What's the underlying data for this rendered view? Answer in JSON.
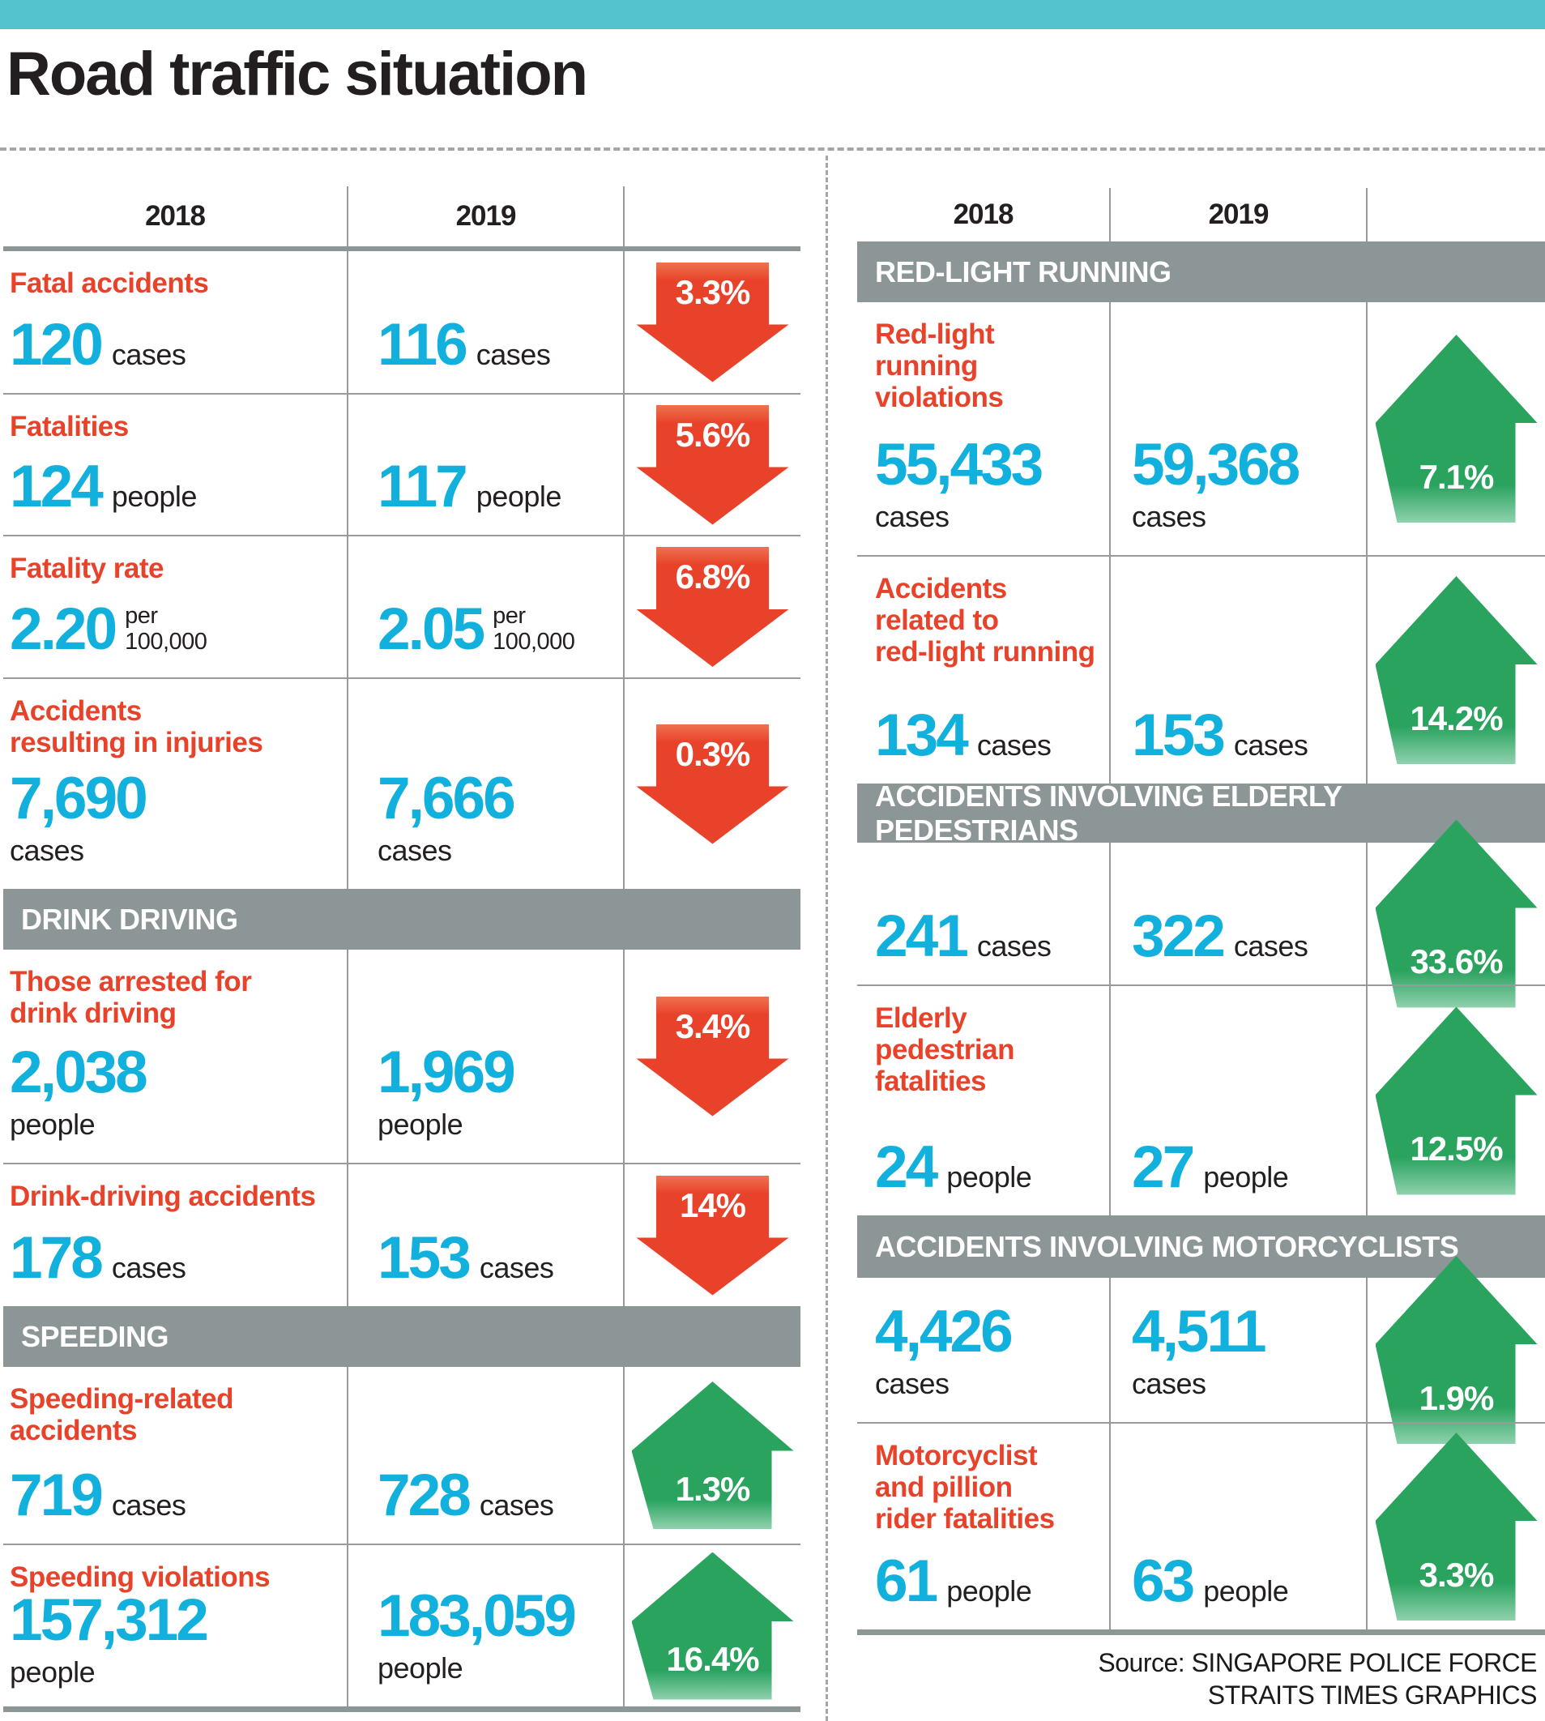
{
  "header": {
    "title": "Road traffic situation"
  },
  "colors": {
    "topbar_teal": "#54c3cd",
    "band_gray": "#8d9697",
    "value_cyan": "#12b0dc",
    "label_red": "#e8432a",
    "arrow_red": "#e8432a",
    "arrow_green": "#2aa35f",
    "divider_gray": "#9a9a9a"
  },
  "years": [
    "2018",
    "2019"
  ],
  "left_table": {
    "rows": [
      {
        "kind": "stat",
        "key": "fatal-accidents",
        "label": [
          "Fatal accidents"
        ],
        "y2018": {
          "value": "120",
          "unit": "cases"
        },
        "y2019": {
          "value": "116",
          "unit": "cases"
        },
        "unit_layout": "inline",
        "trend": {
          "dir": "down",
          "pct": "3.3%"
        }
      },
      {
        "kind": "stat",
        "key": "fatalities",
        "label": [
          "Fatalities"
        ],
        "y2018": {
          "value": "124",
          "unit": "people"
        },
        "y2019": {
          "value": "117",
          "unit": "people"
        },
        "unit_layout": "inline",
        "trend": {
          "dir": "down",
          "pct": "5.6%"
        }
      },
      {
        "kind": "stat",
        "key": "fatality-rate",
        "label": [
          "Fatality rate"
        ],
        "y2018": {
          "value": "2.20",
          "unit": "per 100,000"
        },
        "y2019": {
          "value": "2.05",
          "unit": "per 100,000"
        },
        "unit_layout": "stack",
        "trend": {
          "dir": "down",
          "pct": "6.8%"
        }
      },
      {
        "kind": "stat",
        "key": "injury-accidents",
        "label": [
          "Accidents",
          "resulting in injuries"
        ],
        "y2018": {
          "value": "7,690",
          "unit": "cases"
        },
        "y2019": {
          "value": "7,666",
          "unit": "cases"
        },
        "unit_layout": "below",
        "trend": {
          "dir": "down",
          "pct": "0.3%"
        }
      },
      {
        "kind": "band",
        "key": "drink-driving",
        "label": "DRINK DRIVING"
      },
      {
        "kind": "stat",
        "key": "drink-driving-arrests",
        "label": [
          "Those arrested for",
          "drink driving"
        ],
        "y2018": {
          "value": "2,038",
          "unit": "people"
        },
        "y2019": {
          "value": "1,969",
          "unit": "people"
        },
        "unit_layout": "below",
        "trend": {
          "dir": "down",
          "pct": "3.4%"
        }
      },
      {
        "kind": "stat",
        "key": "drink-driving-accidents",
        "label": [
          "Drink-driving accidents"
        ],
        "y2018": {
          "value": "178",
          "unit": "cases"
        },
        "y2019": {
          "value": "153",
          "unit": "cases"
        },
        "unit_layout": "inline",
        "trend": {
          "dir": "down",
          "pct": "14%"
        }
      },
      {
        "kind": "band",
        "key": "speeding",
        "label": "SPEEDING"
      },
      {
        "kind": "stat",
        "key": "speeding-accidents",
        "label": [
          "Speeding-related",
          "accidents"
        ],
        "y2018": {
          "value": "719",
          "unit": "cases"
        },
        "y2019": {
          "value": "728",
          "unit": "cases"
        },
        "unit_layout": "inline",
        "trend": {
          "dir": "up",
          "pct": "1.3%"
        }
      },
      {
        "kind": "stat",
        "key": "speeding-violations",
        "label": [
          "Speeding violations"
        ],
        "y2018": {
          "value": "157,312",
          "unit": "people"
        },
        "y2019": {
          "value": "183,059",
          "unit": "people"
        },
        "unit_layout": "below",
        "trend": {
          "dir": "up",
          "pct": "16.4%"
        }
      }
    ]
  },
  "right_table": {
    "rows": [
      {
        "kind": "band",
        "key": "red-light-running",
        "label": "RED-LIGHT RUNNING"
      },
      {
        "kind": "stat",
        "key": "red-light-violations",
        "label": [
          "Red-light",
          "running",
          "violations"
        ],
        "y2018": {
          "value": "55,433",
          "unit": "cases"
        },
        "y2019": {
          "value": "59,368",
          "unit": "cases"
        },
        "unit_layout": "below",
        "trend": {
          "dir": "up",
          "pct": "7.1%"
        }
      },
      {
        "kind": "stat",
        "key": "red-light-accidents",
        "label": [
          "Accidents",
          "related to",
          "red-light running"
        ],
        "y2018": {
          "value": "134",
          "unit": "cases"
        },
        "y2019": {
          "value": "153",
          "unit": "cases"
        },
        "unit_layout": "inline",
        "trend": {
          "dir": "up",
          "pct": "14.2%"
        }
      },
      {
        "kind": "band",
        "key": "elderly-pedestrians",
        "label": "ACCIDENTS INVOLVING ELDERLY PEDESTRIANS"
      },
      {
        "kind": "stat",
        "key": "elderly-pedestrian-accidents",
        "label": [],
        "y2018": {
          "value": "241",
          "unit": "cases"
        },
        "y2019": {
          "value": "322",
          "unit": "cases"
        },
        "unit_layout": "inline",
        "trend": {
          "dir": "up",
          "pct": "33.6%"
        }
      },
      {
        "kind": "stat",
        "key": "elderly-pedestrian-fatalities",
        "label": [
          "Elderly",
          "pedestrian",
          "fatalities"
        ],
        "y2018": {
          "value": "24",
          "unit": "people"
        },
        "y2019": {
          "value": "27",
          "unit": "people"
        },
        "unit_layout": "inline",
        "trend": {
          "dir": "up",
          "pct": "12.5%"
        }
      },
      {
        "kind": "band",
        "key": "motorcyclists",
        "label": "ACCIDENTS INVOLVING MOTORCYCLISTS"
      },
      {
        "kind": "stat",
        "key": "motorcyclist-accidents",
        "label": [],
        "y2018": {
          "value": "4,426",
          "unit": "cases"
        },
        "y2019": {
          "value": "4,511",
          "unit": "cases"
        },
        "unit_layout": "below",
        "trend": {
          "dir": "up",
          "pct": "1.9%"
        }
      },
      {
        "kind": "stat",
        "key": "motorcyclist-fatalities",
        "label": [
          "Motorcyclist",
          "and pillion",
          "rider fatalities"
        ],
        "y2018": {
          "value": "61",
          "unit": "people"
        },
        "y2019": {
          "value": "63",
          "unit": "people"
        },
        "unit_layout": "inline",
        "trend": {
          "dir": "up",
          "pct": "3.3%"
        }
      }
    ]
  },
  "source": {
    "line1": "Source: SINGAPORE POLICE FORCE",
    "line2": "STRAITS TIMES GRAPHICS"
  }
}
